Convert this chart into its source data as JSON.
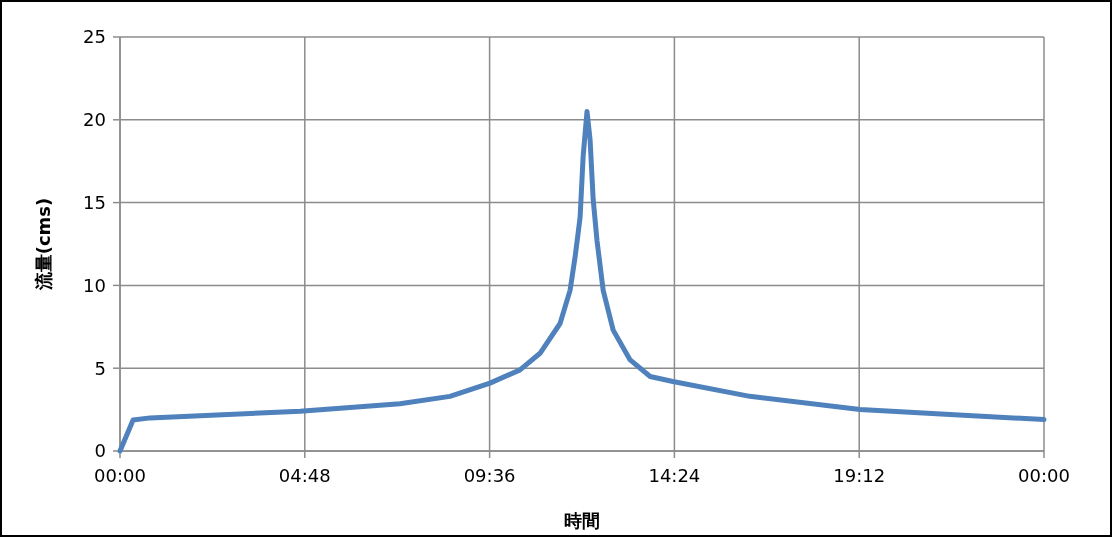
{
  "chart_data": {
    "type": "line",
    "xlabel": "時間",
    "ylabel": "流量(cms)",
    "x": [
      0,
      0.34,
      0.78,
      4.68,
      7.27,
      8.57,
      9.61,
      10.39,
      10.91,
      11.43,
      11.69,
      11.82,
      11.95,
      12.03,
      12.13,
      12.21,
      12.29,
      12.39,
      12.55,
      12.81,
      13.25,
      13.77,
      14.36,
      16.36,
      19.22,
      21.56,
      24
    ],
    "series": [
      {
        "color": "#4f81bd",
        "values": [
          0,
          1.87,
          2.0,
          2.4,
          2.85,
          3.3,
          4.1,
          4.9,
          5.9,
          7.7,
          9.7,
          11.7,
          14.1,
          17.8,
          20.5,
          18.8,
          15.2,
          12.7,
          9.7,
          7.3,
          5.5,
          4.5,
          4.2,
          3.3,
          2.5,
          2.2,
          1.9
        ]
      }
    ],
    "xlim": [
      0,
      24
    ],
    "xticks": [
      {
        "value": 0,
        "label": "00:00"
      },
      {
        "value": 4.8,
        "label": "04:48"
      },
      {
        "value": 9.6,
        "label": "09:36"
      },
      {
        "value": 14.4,
        "label": "14:24"
      },
      {
        "value": 19.2,
        "label": "19:12"
      },
      {
        "value": 24,
        "label": "00:00"
      }
    ],
    "ylim": [
      0,
      25
    ],
    "yticks": [
      0,
      5,
      10,
      15,
      20,
      25
    ],
    "grid": true,
    "marker": "none",
    "line_style": "solid"
  }
}
